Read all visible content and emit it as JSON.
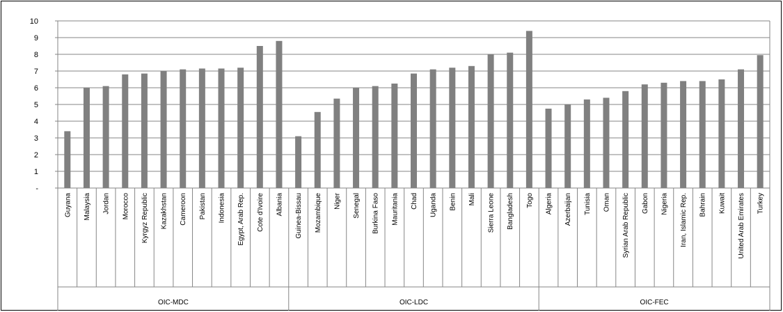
{
  "chart_data": {
    "type": "bar",
    "ylim": [
      0,
      10
    ],
    "y_ticks": [
      "-",
      "1",
      "2",
      "3",
      "4",
      "5",
      "6",
      "7",
      "8",
      "9",
      "10"
    ],
    "grid": true,
    "legend": "none",
    "colors": {
      "bar": "#808080",
      "grid": "#868686",
      "axis": "#868686"
    },
    "groups": [
      {
        "label": "OIC-MDC",
        "categories": [
          "Guyana",
          "Malaysia",
          "Jordan",
          "Morocco",
          "Kyrgyz Republic",
          "Kazakhstan",
          "Cameroon",
          "Pakistan",
          "Indonesia",
          "Egypt, Arab Rep.",
          "Cote d'Ivoire",
          "Albania"
        ],
        "values": [
          3.4,
          6.0,
          6.1,
          6.8,
          6.85,
          7.0,
          7.1,
          7.15,
          7.15,
          7.2,
          8.5,
          8.8
        ]
      },
      {
        "label": "OIC-LDC",
        "categories": [
          "Guinea-Bissau",
          "Mozambique",
          "Niger",
          "Senegal",
          "Burkina Faso",
          "Mauritania",
          "Chad",
          "Uganda",
          "Benin",
          "Mali",
          "Sierra Leone",
          "Bangladesh",
          "Togo"
        ],
        "values": [
          3.1,
          4.55,
          5.35,
          6.0,
          6.1,
          6.25,
          6.85,
          7.1,
          7.2,
          7.3,
          8.0,
          8.1,
          9.4
        ]
      },
      {
        "label": "OIC-FEC",
        "categories": [
          "Algeria",
          "Azerbaijan",
          "Tunisia",
          "Oman",
          "Syrian Arab Republic",
          "Gabon",
          "Nigeria",
          "Iran, Islamic Rep.",
          "Bahrain",
          "Kuwait",
          "United Arab Emirates",
          "Turkey"
        ],
        "values": [
          4.75,
          5.0,
          5.3,
          5.4,
          5.8,
          6.2,
          6.3,
          6.4,
          6.4,
          6.5,
          7.1,
          7.95
        ]
      }
    ]
  }
}
